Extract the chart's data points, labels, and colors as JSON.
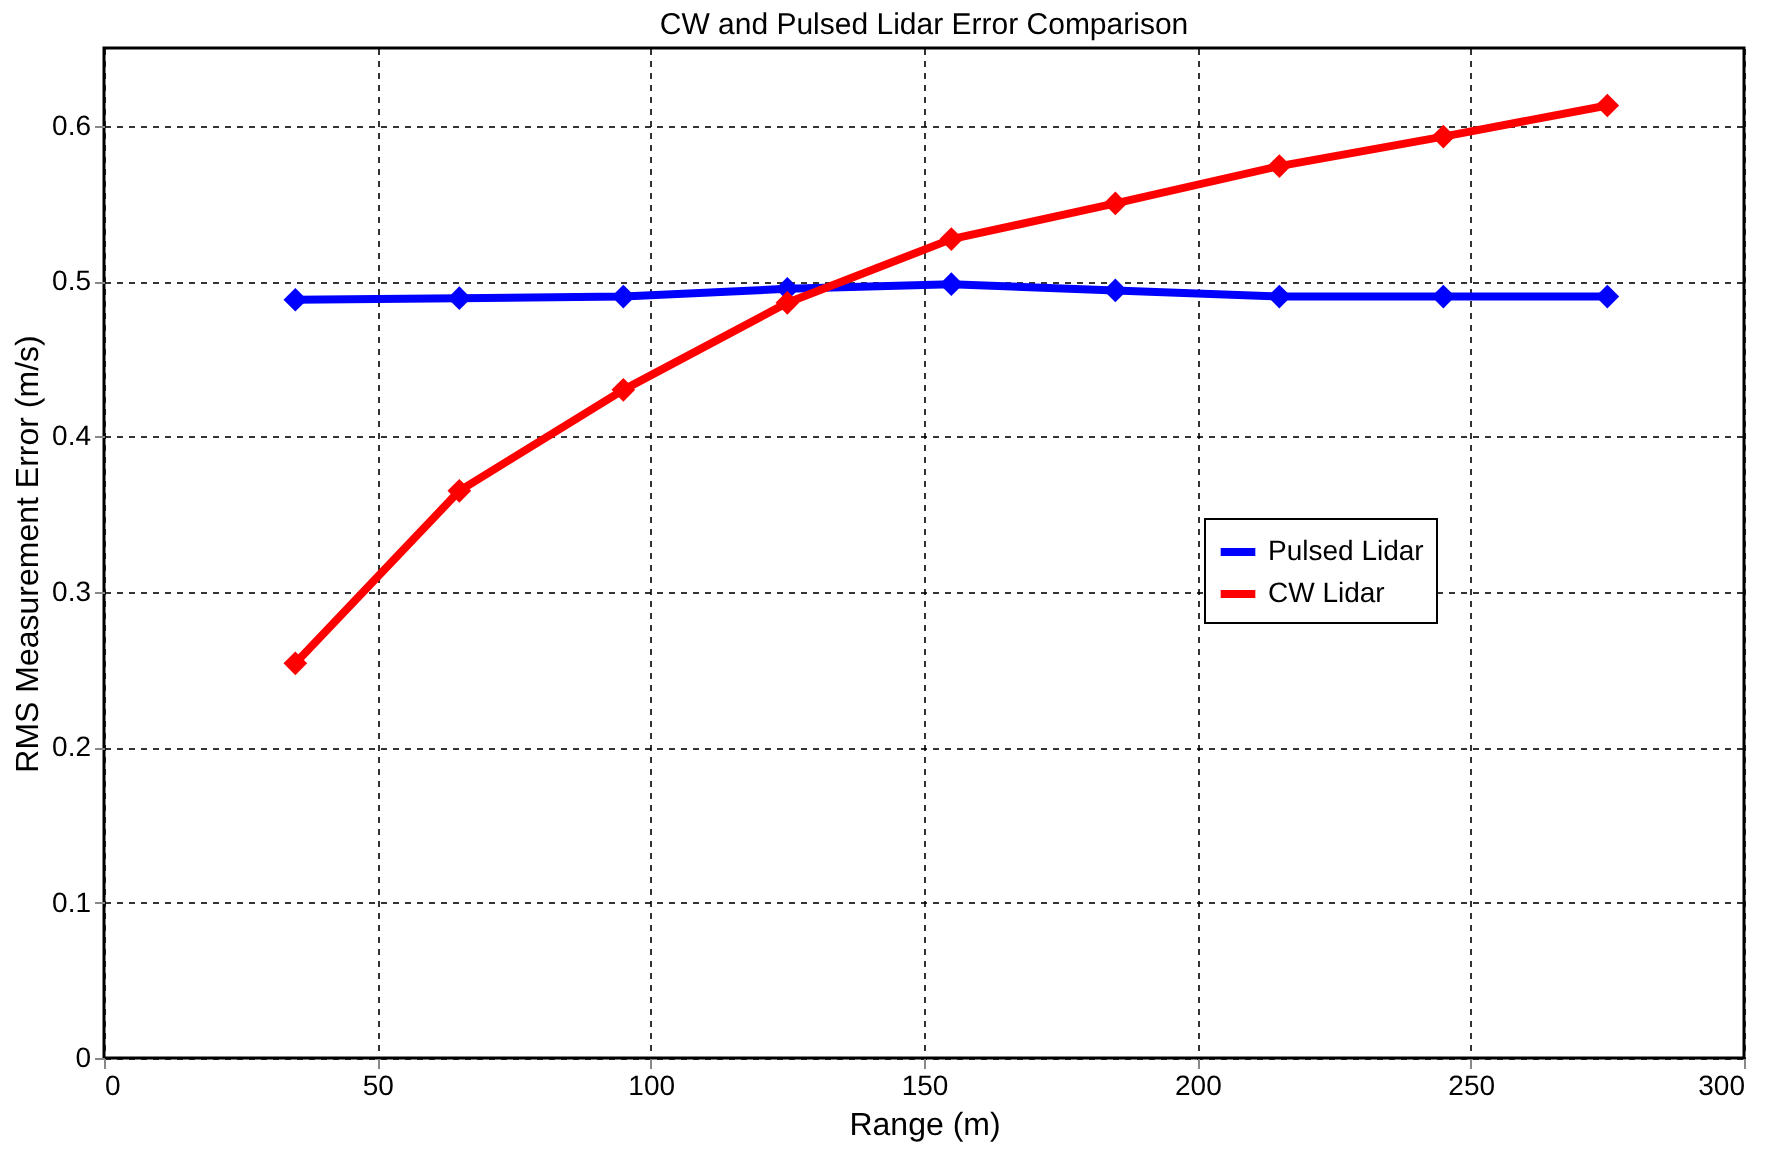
{
  "chart_data": {
    "type": "line",
    "title": "CW and Pulsed Lidar Error Comparison",
    "xlabel": "Range (m)",
    "ylabel": "RMS Measurement Error (m/s)",
    "x": [
      35,
      65,
      95,
      125,
      155,
      185,
      215,
      245,
      275
    ],
    "series": [
      {
        "name": "Pulsed Lidar",
        "color": "#0000ff",
        "values": [
          0.488,
          0.489,
          0.49,
          0.495,
          0.498,
          0.494,
          0.49,
          0.49,
          0.49
        ]
      },
      {
        "name": "CW Lidar",
        "color": "#ff0000",
        "values": [
          0.254,
          0.365,
          0.43,
          0.486,
          0.527,
          0.55,
          0.574,
          0.593,
          0.613
        ]
      }
    ],
    "xlim": [
      0,
      300
    ],
    "xticks": [
      0,
      50,
      100,
      150,
      200,
      250,
      300
    ],
    "ylim": [
      0,
      0.65
    ],
    "yticks": [
      0,
      0.1,
      0.2,
      0.3,
      0.4,
      0.5,
      0.6
    ],
    "grid": true,
    "legend": "right",
    "marker": "diamond",
    "line_style": "solid"
  }
}
